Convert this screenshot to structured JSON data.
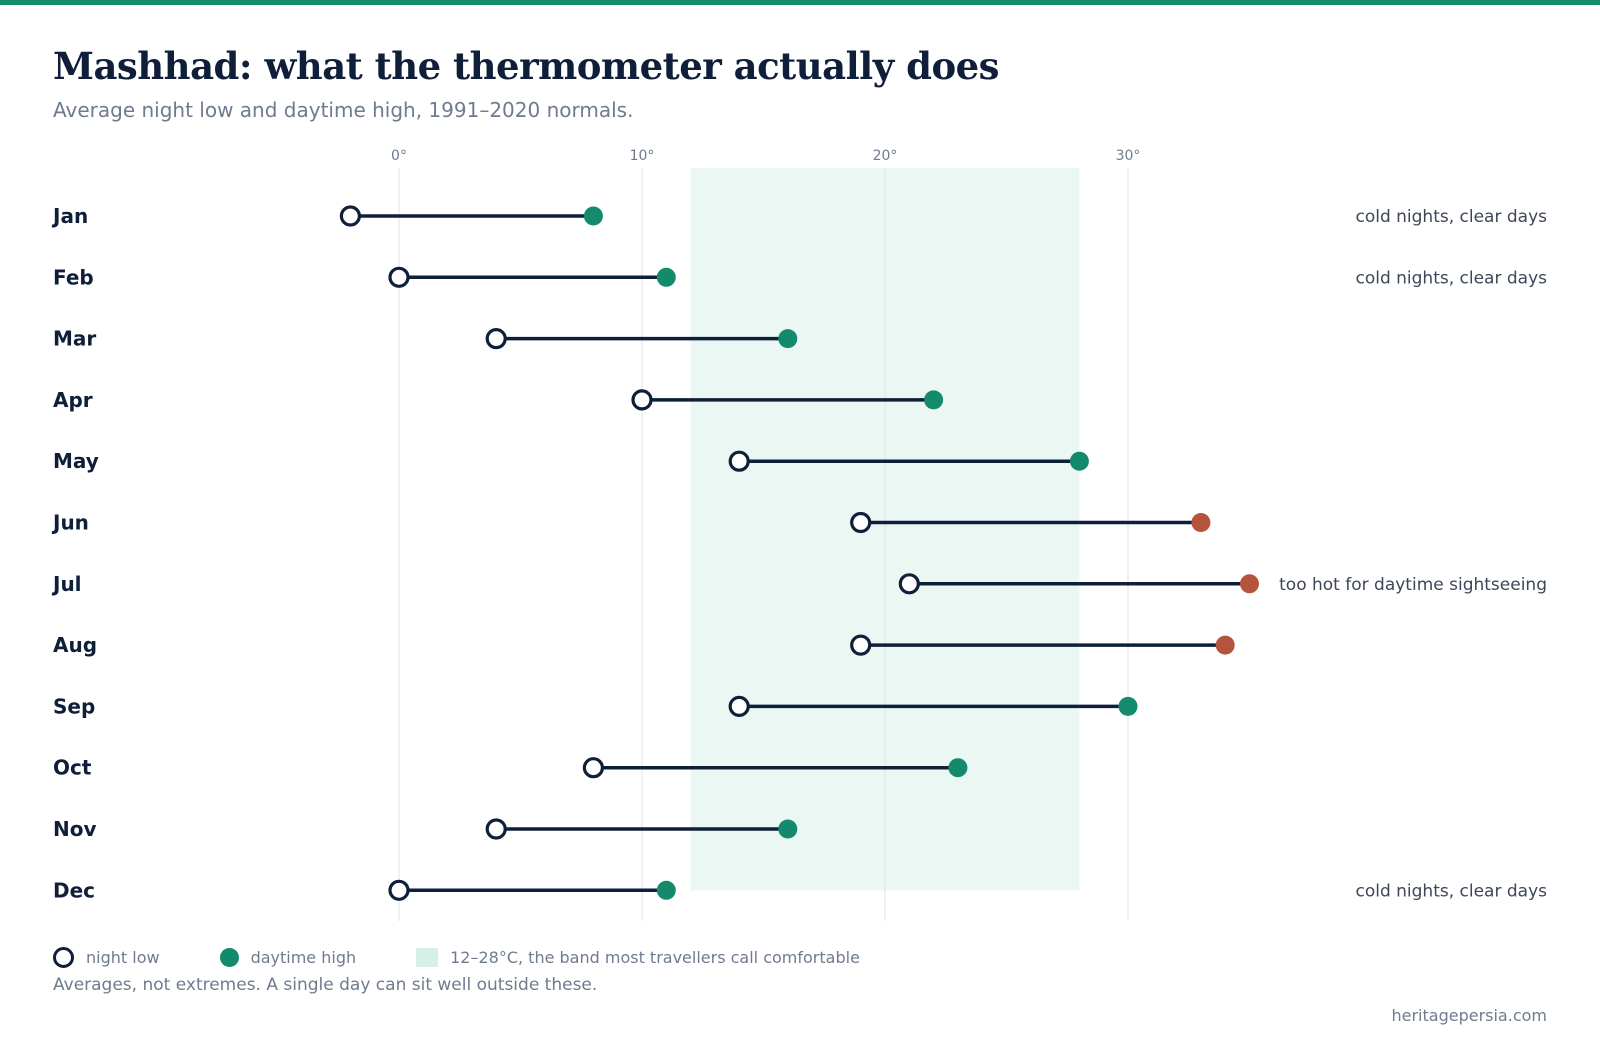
{
  "header": {
    "title": "Mashhad: what the thermometer actually does",
    "subtitle": "Average night low and daytime high, 1991–2020 normals."
  },
  "legend": {
    "low_label": "night low",
    "high_label": "daytime high",
    "band_label": "12–28°C, the band most travellers call comfortable"
  },
  "footer": {
    "caveat": "Averages, not extremes. A single day can sit well outside these.",
    "credit": "heritagepersia.com"
  },
  "colors": {
    "ink": "#0f1f3a",
    "high": "#138a6c",
    "hot": "#b5533c",
    "band": "#eaf7f2",
    "grid": "#e3e6ea",
    "muted": "#6f7b8f",
    "accent_bar": "#138a6c"
  },
  "chart_data": {
    "type": "dumbbell",
    "x_unit": "°C",
    "xlim": [
      -4,
      35
    ],
    "x_ticks": [
      0,
      10,
      20,
      30
    ],
    "x_tick_labels": [
      "0°",
      "10°",
      "20°",
      "30°"
    ],
    "grid": "vertical",
    "comfort_band": [
      12,
      28
    ],
    "hot_threshold": 30,
    "series": [
      {
        "name": "night low",
        "key": "low"
      },
      {
        "name": "daytime high",
        "key": "high"
      }
    ],
    "rows": [
      {
        "month": "Jan",
        "low": -2,
        "high": 8,
        "note": "cold nights, clear days"
      },
      {
        "month": "Feb",
        "low": 0,
        "high": 11,
        "note": "cold nights, clear days"
      },
      {
        "month": "Mar",
        "low": 4,
        "high": 16,
        "note": ""
      },
      {
        "month": "Apr",
        "low": 10,
        "high": 22,
        "note": ""
      },
      {
        "month": "May",
        "low": 14,
        "high": 28,
        "note": ""
      },
      {
        "month": "Jun",
        "low": 19,
        "high": 33,
        "note": ""
      },
      {
        "month": "Jul",
        "low": 21,
        "high": 35,
        "note": "too hot for daytime sightseeing"
      },
      {
        "month": "Aug",
        "low": 19,
        "high": 34,
        "note": ""
      },
      {
        "month": "Sep",
        "low": 14,
        "high": 30,
        "note": ""
      },
      {
        "month": "Oct",
        "low": 8,
        "high": 23,
        "note": ""
      },
      {
        "month": "Nov",
        "low": 4,
        "high": 16,
        "note": ""
      },
      {
        "month": "Dec",
        "low": 0,
        "high": 11,
        "note": "cold nights, clear days"
      }
    ]
  }
}
